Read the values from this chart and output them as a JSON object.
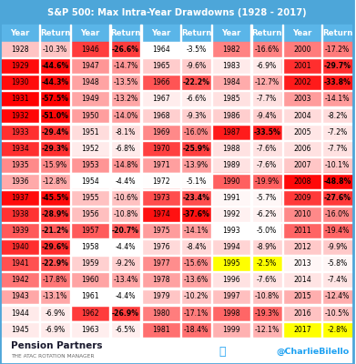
{
  "title": "S&P 500: Max Intra-Year Drawdowns (1928 - 2017)",
  "title_bg": "#4da6d9",
  "header_bg": "#5ab5e8",
  "table_data": [
    [
      1928,
      -10.3,
      1946,
      -26.6,
      1964,
      -3.5,
      1982,
      -16.6,
      2000,
      -17.2
    ],
    [
      1929,
      -44.6,
      1947,
      -14.7,
      1965,
      -9.6,
      1983,
      -6.9,
      2001,
      -29.7
    ],
    [
      1930,
      -44.3,
      1948,
      -13.5,
      1966,
      -22.2,
      1984,
      -12.7,
      2002,
      -33.8
    ],
    [
      1931,
      -57.5,
      1949,
      -13.2,
      1967,
      -6.6,
      1985,
      -7.7,
      2003,
      -14.1
    ],
    [
      1932,
      -51.0,
      1950,
      -14.0,
      1968,
      -9.3,
      1986,
      -9.4,
      2004,
      -8.2
    ],
    [
      1933,
      -29.4,
      1951,
      -8.1,
      1969,
      -16.0,
      1987,
      -33.5,
      2005,
      -7.2
    ],
    [
      1934,
      -29.3,
      1952,
      -6.8,
      1970,
      -25.9,
      1988,
      -7.6,
      2006,
      -7.7
    ],
    [
      1935,
      -15.9,
      1953,
      -14.8,
      1971,
      -13.9,
      1989,
      -7.6,
      2007,
      -10.1
    ],
    [
      1936,
      -12.8,
      1954,
      -4.4,
      1972,
      -5.1,
      1990,
      -19.9,
      2008,
      -48.8
    ],
    [
      1937,
      -45.5,
      1955,
      -10.6,
      1973,
      -23.4,
      1991,
      -5.7,
      2009,
      -27.6
    ],
    [
      1938,
      -28.9,
      1956,
      -10.8,
      1974,
      -37.6,
      1992,
      -6.2,
      2010,
      -16.0
    ],
    [
      1939,
      -21.2,
      1957,
      -20.7,
      1975,
      -14.1,
      1993,
      -5.0,
      2011,
      -19.4
    ],
    [
      1940,
      -29.6,
      1958,
      -4.4,
      1976,
      -8.4,
      1994,
      -8.9,
      2012,
      -9.9
    ],
    [
      1941,
      -22.9,
      1959,
      -9.2,
      1977,
      -15.6,
      1995,
      -2.5,
      2013,
      -5.8
    ],
    [
      1942,
      -17.8,
      1960,
      -13.4,
      1978,
      -13.6,
      1996,
      -7.6,
      2014,
      -7.4
    ],
    [
      1943,
      -13.1,
      1961,
      -4.4,
      1979,
      -10.2,
      1997,
      -10.8,
      2015,
      -12.4
    ],
    [
      1944,
      -6.9,
      1962,
      -26.9,
      1980,
      -17.1,
      1998,
      -19.3,
      2016,
      -10.5
    ],
    [
      1945,
      -6.9,
      1963,
      -6.5,
      1981,
      -18.4,
      1999,
      -12.1,
      2017,
      -2.8
    ]
  ],
  "yellow_years": [
    1995,
    2017
  ],
  "footer_left": "Pension Partners",
  "footer_sub": "THE ATAC ROTATION MANAGER",
  "footer_right": "@CharlieBilello"
}
